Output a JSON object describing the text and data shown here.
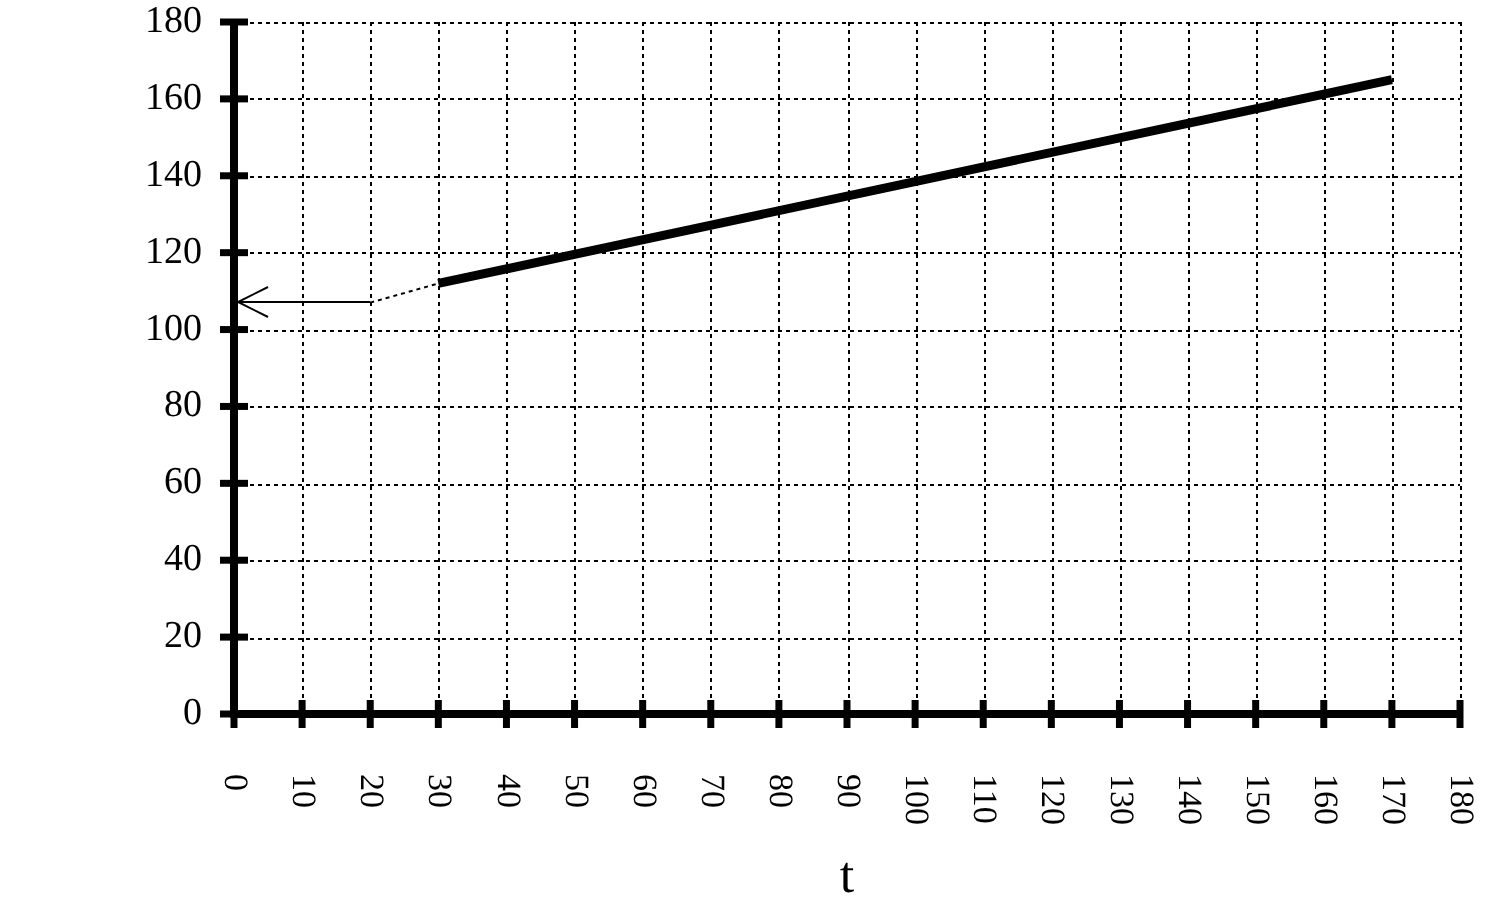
{
  "chart_data": {
    "type": "line",
    "xlabel": "t",
    "series": [
      {
        "color": "#000000",
        "x": [
          30,
          170
        ],
        "values": [
          112,
          165
        ],
        "line_style": "solid"
      },
      {
        "color": "#000000",
        "x": [
          20,
          30
        ],
        "values": [
          107,
          112
        ],
        "line_style": "dotted"
      }
    ],
    "xlim": [
      0,
      180
    ],
    "xticks": [
      0,
      10,
      20,
      30,
      40,
      50,
      60,
      70,
      80,
      90,
      100,
      110,
      120,
      130,
      140,
      150,
      160,
      170,
      180
    ],
    "ylim": [
      0,
      180
    ],
    "yticks": [
      0,
      20,
      40,
      60,
      80,
      100,
      120,
      140,
      160,
      180
    ],
    "grid": true,
    "marker": "none"
  }
}
